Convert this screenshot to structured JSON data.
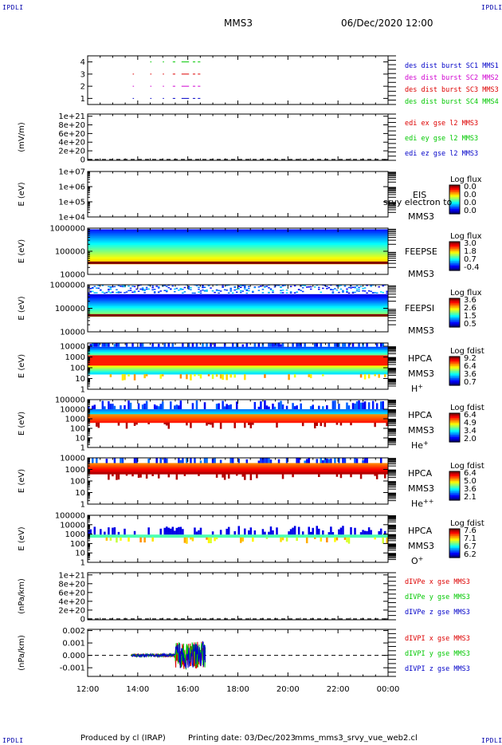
{
  "header": {
    "corner_label": "IPDLI",
    "spacecraft": "MMS3",
    "datetime": "06/Dec/2020 12:00"
  },
  "footer": {
    "produced_by": "Produced by cl (IRAP)",
    "printing_date": "Printing date: 03/Dec/2023",
    "script_name": "mms_mms3_srvy_vue_web2.cl"
  },
  "x_axis": {
    "ticks": [
      "12:00",
      "14:00",
      "16:00",
      "18:00",
      "20:00",
      "22:00",
      "00:00"
    ],
    "tick_hours": [
      12,
      14,
      16,
      18,
      20,
      22,
      24
    ],
    "range_hours": [
      12,
      24
    ]
  },
  "colors": {
    "red": "#dd0000",
    "green": "#00c800",
    "blue": "#0000c8",
    "magenta": "#d000d0"
  },
  "chart_data": [
    {
      "id": "burst",
      "type": "scatter",
      "yticks": [
        "4",
        "3",
        "2",
        "1"
      ],
      "ytick_values": [
        4,
        3,
        2,
        1
      ],
      "ylim": [
        0.5,
        4.5
      ],
      "legend": [
        "des dist burst SC1 MMS1",
        "des dist burst SC2 MMS2",
        "des dist burst SC3 MMS3",
        "des dist burst SC4 MMS4"
      ],
      "legend_colors": [
        "#0000c8",
        "#d000d0",
        "#dd0000",
        "#00c800"
      ],
      "series": [
        {
          "level": 1,
          "color": "#0000c8",
          "segments": [
            [
              13.8,
              13.85
            ],
            [
              14.5,
              14.55
            ],
            [
              15.0,
              15.05
            ],
            [
              15.4,
              15.5
            ],
            [
              15.75,
              16.05
            ],
            [
              16.2,
              16.3
            ],
            [
              16.4,
              16.5
            ]
          ]
        },
        {
          "level": 2,
          "color": "#d000d0",
          "segments": [
            [
              13.8,
              13.85
            ],
            [
              14.5,
              14.55
            ],
            [
              15.0,
              15.05
            ],
            [
              15.4,
              15.5
            ],
            [
              15.75,
              16.05
            ],
            [
              16.2,
              16.3
            ],
            [
              16.4,
              16.5
            ]
          ]
        },
        {
          "level": 3,
          "color": "#dd0000",
          "segments": [
            [
              13.8,
              13.85
            ],
            [
              14.5,
              14.55
            ],
            [
              15.0,
              15.05
            ],
            [
              15.4,
              15.5
            ],
            [
              15.75,
              16.05
            ],
            [
              16.2,
              16.3
            ],
            [
              16.4,
              16.5
            ]
          ]
        },
        {
          "level": 4,
          "color": "#00c800",
          "segments": [
            [
              14.5,
              14.55
            ],
            [
              15.0,
              15.05
            ],
            [
              15.4,
              15.5
            ],
            [
              15.75,
              16.05
            ],
            [
              16.2,
              16.3
            ],
            [
              16.4,
              16.5
            ]
          ]
        }
      ]
    },
    {
      "id": "edi",
      "type": "line",
      "ylabel": "(mV/m)",
      "yticks": [
        "1e+21",
        "8e+20",
        "6e+20",
        "4e+20",
        "2e+20",
        "0"
      ],
      "ytick_values": [
        1e+21,
        8e+20,
        6e+20,
        4e+20,
        2e+20,
        0
      ],
      "ylim": [
        -2e+19,
        1.05e+21
      ],
      "legend": [
        "edi ex gse l2 MMS3",
        "edi ey gse l2 MMS3",
        "edi ez gse l2 MMS3"
      ],
      "legend_colors": [
        "#dd0000",
        "#00c800",
        "#0000c8"
      ],
      "zero_line": true
    },
    {
      "id": "eis",
      "type": "heatmap",
      "ylabel": "E (eV)",
      "yticks": [
        "1e+07",
        "1e+06",
        "1e+05",
        "1e+04"
      ],
      "ytick_values": [
        10000000.0,
        1000000.0,
        100000.0,
        10000.0
      ],
      "ylim": [
        10000.0,
        10000000.0
      ],
      "right_labels": [
        "EIS",
        "MMS3"
      ],
      "overlay_text": "srvy electron to",
      "colorbar": {
        "title": "Log flux",
        "labels": [
          "0.0",
          "0.0",
          "0.0",
          "0.0"
        ]
      },
      "empty": true
    },
    {
      "id": "feepse",
      "type": "heatmap",
      "ylabel": "E (eV)",
      "yticks": [
        "1000000",
        "100000",
        "10000"
      ],
      "ytick_values": [
        1000000.0,
        100000.0,
        10000.0
      ],
      "ylim": [
        10000.0,
        1000000.0
      ],
      "right_labels": [
        "FEEPSE",
        "MMS3"
      ],
      "colorbar": {
        "title": "Log flux",
        "labels": [
          "3.0",
          "1.8",
          "0.7",
          "-0.4"
        ]
      },
      "coverage_hours": [
        12,
        24
      ],
      "band_log_energy": [
        4.45,
        5.95
      ]
    },
    {
      "id": "feepsi",
      "type": "heatmap",
      "ylabel": "E (eV)",
      "yticks": [
        "1000000",
        "100000",
        "10000"
      ],
      "ytick_values": [
        1000000.0,
        100000.0,
        10000.0
      ],
      "ylim": [
        10000.0,
        1000000.0
      ],
      "right_labels": [
        "FEEPSI",
        "MMS3"
      ],
      "colorbar": {
        "title": "Log flux",
        "labels": [
          "3.6",
          "2.6",
          "1.5",
          "0.5"
        ]
      },
      "coverage_hours": [
        12,
        24
      ],
      "band_log_energy": [
        4.65,
        5.6
      ]
    },
    {
      "id": "hpca-h",
      "type": "heatmap",
      "ylabel": "E (eV)",
      "yticks": [
        "10000",
        "1000",
        "100",
        "10",
        "1"
      ],
      "ytick_values": [
        10000.0,
        1000.0,
        100.0,
        10,
        1
      ],
      "ylim": [
        1,
        20000.0
      ],
      "right_labels": [
        "HPCA",
        "MMS3",
        "H+"
      ],
      "colorbar": {
        "title": "Log fdist",
        "labels": [
          "9.2",
          "6.4",
          "3.6",
          "0.7"
        ]
      },
      "coverage_hours": [
        12,
        24
      ],
      "band_log_energy": [
        1.4,
        3.95
      ]
    },
    {
      "id": "hpca-he",
      "type": "heatmap",
      "ylabel": "E (eV)",
      "yticks": [
        "100000",
        "10000",
        "1000",
        "100",
        "10",
        "1"
      ],
      "ytick_values": [
        100000.0,
        10000.0,
        1000.0,
        100.0,
        10,
        1
      ],
      "ylim": [
        1,
        100000.0
      ],
      "right_labels": [
        "HPCA",
        "MMS3",
        "He+"
      ],
      "colorbar": {
        "title": "Log fdist",
        "labels": [
          "6.4",
          "4.9",
          "3.4",
          "2.0"
        ]
      },
      "coverage_hours": [
        12,
        24
      ],
      "band_log_energy": [
        2.6,
        4.0
      ]
    },
    {
      "id": "hpca-he2",
      "type": "heatmap",
      "ylabel": "E (eV)",
      "yticks": [
        "10000",
        "1000",
        "100",
        "10",
        "1"
      ],
      "ytick_values": [
        10000.0,
        1000.0,
        100.0,
        10,
        1
      ],
      "ylim": [
        1,
        10000.0
      ],
      "right_labels": [
        "HPCA",
        "MMS3",
        "He++"
      ],
      "colorbar": {
        "title": "Log fdist",
        "labels": [
          "6.4",
          "5.0",
          "3.6",
          "2.1"
        ]
      },
      "coverage_hours": [
        12,
        24
      ],
      "band_log_energy": [
        2.6,
        3.55
      ]
    },
    {
      "id": "hpca-o",
      "type": "heatmap",
      "ylabel": "E (eV)",
      "yticks": [
        "100000",
        "10000",
        "1000",
        "100",
        "10",
        "1"
      ],
      "ytick_values": [
        100000.0,
        10000.0,
        1000.0,
        100.0,
        10,
        1
      ],
      "ylim": [
        1,
        100000.0
      ],
      "right_labels": [
        "HPCA",
        "MMS3",
        "O+"
      ],
      "colorbar": {
        "title": "Log fdist",
        "labels": [
          "7.6",
          "7.1",
          "6.7",
          "6.2"
        ]
      },
      "coverage_hours": [
        12,
        24
      ],
      "band_log_energy": [
        2.65,
        2.95
      ]
    },
    {
      "id": "divpe",
      "type": "line",
      "ylabel": "(nPa/km)",
      "yticks": [
        "1e+21",
        "8e+20",
        "6e+20",
        "4e+20",
        "2e+20",
        "0"
      ],
      "ytick_values": [
        1e+21,
        8e+20,
        6e+20,
        4e+20,
        2e+20,
        0
      ],
      "ylim": [
        -2e+19,
        1.05e+21
      ],
      "legend": [
        "dIVPe x gse MMS3",
        "dIVPe y gse MMS3",
        "dIVPe z gse MMS3"
      ],
      "legend_colors": [
        "#dd0000",
        "#00c800",
        "#0000c8"
      ],
      "zero_line": true
    },
    {
      "id": "divpi",
      "type": "line",
      "ylabel": "(nPa/km)",
      "yticks": [
        "0.002",
        "0.001",
        "0.000",
        "-0.001"
      ],
      "ytick_values": [
        0.002,
        0.001,
        0.0,
        -0.001
      ],
      "ylim": [
        -0.0017,
        0.0021
      ],
      "legend": [
        "dIVPI x gse MMS3",
        "dIVPI y gse MMS3",
        "dIVPI z gse MMS3"
      ],
      "legend_colors": [
        "#dd0000",
        "#00c800",
        "#0000c8"
      ],
      "zero_line": true,
      "active_hours": [
        13.75,
        16.7
      ],
      "burst_hours": [
        15.5,
        16.7
      ]
    }
  ]
}
